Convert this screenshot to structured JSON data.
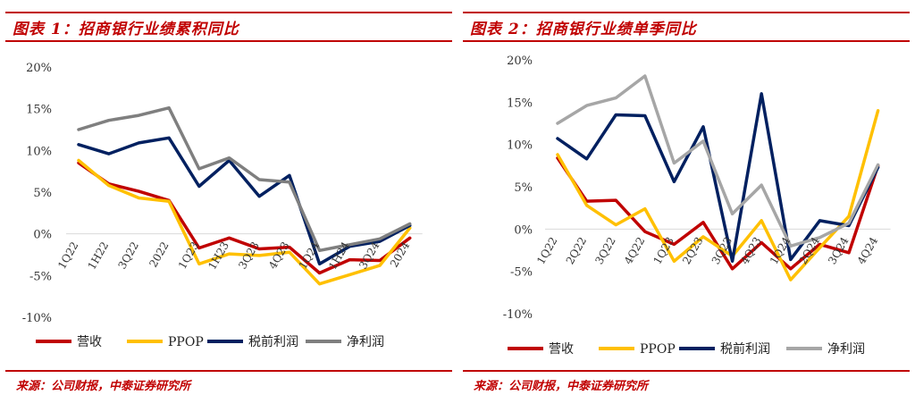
{
  "charts": [
    {
      "title": "图表 1：招商银行业绩累积同比",
      "source": "来源：公司财报，中泰证券研究所"
    },
    {
      "title": "图表 2：招商银行业绩单季同比",
      "source": "来源：公司财报，中泰证券研究所"
    }
  ],
  "chart_data": [
    {
      "type": "line",
      "title": "图表 1：招商银行业绩累积同比",
      "categories": [
        "1Q22",
        "1H22",
        "3Q22",
        "2022",
        "1Q23",
        "1H23",
        "3Q23",
        "4Q23",
        "1Q24",
        "1H24",
        "3Q24",
        "2024"
      ],
      "category_labels_shown": [
        "1Q22",
        "1H22",
        "3Q22",
        "2022",
        "1Q23",
        "1H23",
        "3Q23",
        "4Q23",
        "1Q24",
        "1H24",
        "3Q24",
        "2024"
      ],
      "y_tick_labels": [
        "20%",
        "15%",
        "10%",
        "5%",
        "0%",
        "-5%",
        "-10%"
      ],
      "ylim": [
        -10,
        20
      ],
      "y_ticks": [
        20,
        15,
        10,
        5,
        0,
        -5,
        -10
      ],
      "legend": "bottom",
      "grid": "zero-line only",
      "series": [
        {
          "name": "营收",
          "color": "#c00000",
          "values": [
            8.5,
            6.0,
            5.1,
            4.0,
            -1.7,
            -0.5,
            -1.8,
            -1.6,
            -4.7,
            -3.1,
            -3.2,
            -0.5
          ]
        },
        {
          "name": "PPOP",
          "color": "#ffc000",
          "values": [
            8.8,
            5.8,
            4.3,
            3.9,
            -3.6,
            -2.4,
            -2.6,
            -2.2,
            -6.0,
            -4.9,
            -3.8,
            0.7
          ]
        },
        {
          "name": "税前利润",
          "color": "#002060",
          "values": [
            10.7,
            9.6,
            10.9,
            11.5,
            5.7,
            8.8,
            4.5,
            7.0,
            -3.6,
            -1.5,
            -0.9,
            1.0
          ]
        },
        {
          "name": "净利润",
          "color": "#7f7f7f",
          "values": [
            12.5,
            13.6,
            14.2,
            15.1,
            7.8,
            9.1,
            6.5,
            6.2,
            -2.0,
            -1.3,
            -0.6,
            1.2
          ]
        }
      ]
    },
    {
      "type": "line",
      "title": "图表 2：招商银行业绩单季同比",
      "categories": [
        "1Q22",
        "2Q22",
        "3Q22",
        "4Q22",
        "1Q23",
        "2Q23",
        "3Q23",
        "4Q23",
        "1Q24",
        "2Q24",
        "3Q24",
        "4Q24"
      ],
      "category_labels_shown": [
        "1Q22",
        "2Q22",
        "3Q22",
        "4Q22",
        "1Q23",
        "2Q23",
        "3Q23",
        "4Q23",
        "1Q24",
        "2Q24",
        "3Q24",
        "4Q24"
      ],
      "y_tick_labels": [
        "20%",
        "15%",
        "10%",
        "5%",
        "0%",
        "-5%",
        "-10%"
      ],
      "ylim": [
        -10,
        20
      ],
      "y_ticks": [
        20,
        15,
        10,
        5,
        0,
        -5,
        -10
      ],
      "legend": "bottom",
      "grid": "zero-line only",
      "series": [
        {
          "name": "营收",
          "color": "#c00000",
          "values": [
            8.4,
            3.3,
            3.4,
            -0.3,
            -1.8,
            0.8,
            -4.7,
            -1.6,
            -4.7,
            -1.8,
            -2.8,
            7.5
          ]
        },
        {
          "name": "PPOP",
          "color": "#ffc000",
          "values": [
            8.8,
            2.8,
            0.5,
            2.4,
            -3.8,
            -0.9,
            -3.2,
            1.0,
            -6.0,
            -2.2,
            1.5,
            14.0
          ]
        },
        {
          "name": "税前利润",
          "color": "#002060",
          "values": [
            10.7,
            8.3,
            13.5,
            13.4,
            5.6,
            12.1,
            -3.8,
            16.0,
            -3.6,
            1.0,
            0.4,
            7.3
          ]
        },
        {
          "name": "净利润",
          "color": "#a6a6a6",
          "values": [
            12.5,
            14.6,
            15.5,
            18.1,
            7.8,
            10.4,
            1.8,
            5.2,
            -2.0,
            -1.0,
            0.7,
            7.6
          ]
        }
      ]
    }
  ]
}
